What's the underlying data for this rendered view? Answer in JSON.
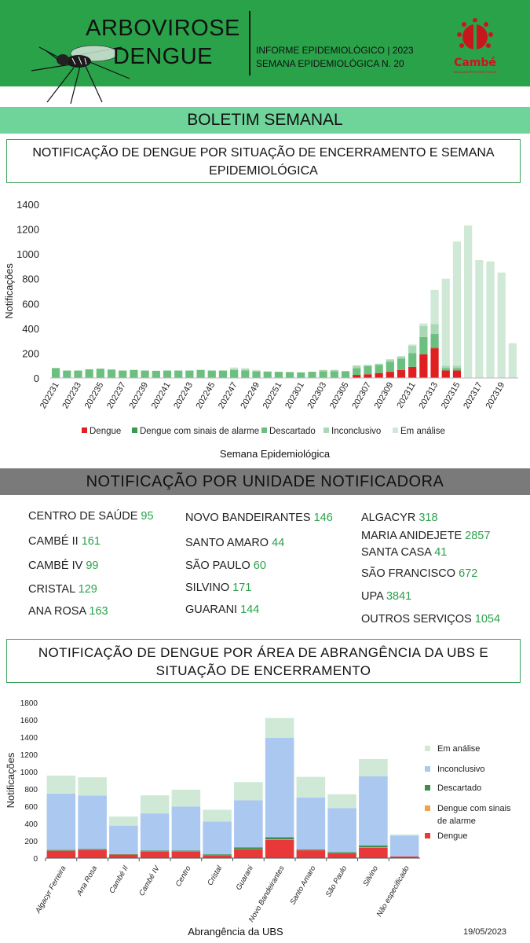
{
  "header": {
    "title_line1": "ARBOVIROSE",
    "title_line2": "DENGUE",
    "informe_line1": "INFORME EPIDEMIOLÓGICO | 2023",
    "informe_line2": "SEMANA EPIDEMIOLÓGICA  N. 20",
    "logo_name": "Cambé",
    "logo_sub": "UM MUNICÍPIO PARA TODOS"
  },
  "banner": {
    "title": "BOLETIM SEMANAL"
  },
  "section1": {
    "title": "NOTIFICAÇÃO DE DENGUE POR SITUAÇÃO DE ENCERRAMENTO E SEMANA EPIDEMIOLÓGICA"
  },
  "section2": {
    "title": "NOTIFICAÇÃO POR UNIDADE NOTIFICADORA"
  },
  "section3": {
    "title": "NOTIFICAÇÃO DE DENGUE POR ÁREA DE ABRANGÊNCIA DA UBS E SITUAÇÃO DE ENCERRAMENTO"
  },
  "units": {
    "col1": [
      {
        "name": "CENTRO  DE SAÚDE",
        "value": "95"
      },
      {
        "name": "CAMBÉ II",
        "value": "161"
      },
      {
        "name": "CAMBÉ IV",
        "value": "99"
      },
      {
        "name": "CRISTAL",
        "value": "129"
      },
      {
        "name": "ANA ROSA",
        "value": "163"
      }
    ],
    "col2": [
      {
        "name": "NOVO BANDEIRANTES",
        "value": "146"
      },
      {
        "name": "SANTO AMARO",
        "value": "44"
      },
      {
        "name": "SÃO PAULO",
        "value": "60"
      },
      {
        "name": "SILVINO",
        "value": "171"
      },
      {
        "name": "GUARANI",
        "value": "144"
      }
    ],
    "col3": [
      {
        "name": "ALGACYR",
        "value": "318"
      },
      {
        "name": "MARIA ANIDEJETE",
        "value": "2857"
      },
      {
        "name": "SANTA CASA",
        "value": "41"
      },
      {
        "name": "SÃO FRANCISCO",
        "value": "672"
      },
      {
        "name": "UPA",
        "value": "3841"
      },
      {
        "name": "OUTROS SERVIÇOS",
        "value": "1054"
      }
    ]
  },
  "footer": {
    "date": "19/05/2023"
  },
  "colors": {
    "dengue": "#e02020",
    "sinais_chart1": "#3a9a4e",
    "descartado": "#6cc07f",
    "inconclusivo": "#a9d8b4",
    "em_analise": "#cfe9d6",
    "sinais_chart2": "#f2a24a",
    "descartado2": "#3e8e4a",
    "inconclusivo2": "#aac8f0",
    "em_analise2": "#cfe9d6",
    "dengue2": "#e8383a"
  },
  "chart_data": [
    {
      "type": "bar",
      "stacked": true,
      "ylabel": "Notificações",
      "xlabel": "Semana Epidemiológica",
      "ylim": [
        0,
        1400
      ],
      "yticks": [
        0,
        200,
        400,
        600,
        800,
        1000,
        1200,
        1400
      ],
      "grid": false,
      "legend_position": "bottom",
      "categories": [
        "202231",
        "202232",
        "202233",
        "202234",
        "202235",
        "202236",
        "202237",
        "202238",
        "202239",
        "202240",
        "202241",
        "202242",
        "202243",
        "202244",
        "202245",
        "202246",
        "202247",
        "202248",
        "202249",
        "202250",
        "202251",
        "202252",
        "202301",
        "202302",
        "202303",
        "202304",
        "202305",
        "202306",
        "202307",
        "202308",
        "202309",
        "202310",
        "202311",
        "202312",
        "202313",
        "202314",
        "202315",
        "202316",
        "202317",
        "202318",
        "202319",
        "202320"
      ],
      "xtick_labels": [
        "202231",
        "",
        "202233",
        "",
        "202235",
        "",
        "202237",
        "",
        "202239",
        "",
        "202241",
        "",
        "202243",
        "",
        "202245",
        "",
        "202247",
        "",
        "202249",
        "",
        "202251",
        "",
        "202301",
        "",
        "202303",
        "",
        "202305",
        "",
        "202307",
        "",
        "202309",
        "",
        "202311",
        "",
        "202313",
        "",
        "202315",
        "",
        "202317",
        "",
        "202319",
        ""
      ],
      "series": [
        {
          "name": "Dengue",
          "values": [
            0,
            0,
            0,
            0,
            0,
            0,
            0,
            0,
            0,
            0,
            0,
            0,
            0,
            0,
            0,
            0,
            0,
            0,
            0,
            0,
            0,
            0,
            0,
            0,
            0,
            0,
            0,
            25,
            30,
            40,
            50,
            65,
            90,
            190,
            240,
            60,
            60,
            0,
            0,
            0,
            0,
            0
          ]
        },
        {
          "name": "Dengue com sinais de alarme",
          "values": [
            0,
            0,
            0,
            0,
            0,
            0,
            0,
            0,
            0,
            0,
            0,
            0,
            0,
            0,
            0,
            0,
            0,
            0,
            0,
            0,
            0,
            0,
            0,
            0,
            0,
            0,
            0,
            0,
            0,
            0,
            0,
            0,
            0,
            0,
            5,
            0,
            0,
            0,
            0,
            0,
            0,
            0
          ]
        },
        {
          "name": "Descartado",
          "values": [
            80,
            60,
            60,
            70,
            75,
            68,
            60,
            65,
            60,
            58,
            60,
            60,
            60,
            65,
            60,
            60,
            65,
            60,
            55,
            52,
            50,
            48,
            45,
            50,
            55,
            55,
            55,
            55,
            65,
            65,
            80,
            90,
            110,
            140,
            110,
            20,
            20,
            0,
            0,
            0,
            0,
            0
          ]
        },
        {
          "name": "Inconclusivo",
          "values": [
            0,
            0,
            0,
            0,
            0,
            0,
            0,
            0,
            0,
            0,
            0,
            0,
            0,
            0,
            0,
            0,
            10,
            10,
            0,
            0,
            0,
            0,
            0,
            0,
            10,
            10,
            0,
            20,
            10,
            10,
            20,
            20,
            60,
            90,
            80,
            20,
            20,
            0,
            5,
            0,
            0,
            0
          ]
        },
        {
          "name": "Em análise",
          "values": [
            0,
            0,
            0,
            0,
            0,
            0,
            0,
            0,
            0,
            0,
            0,
            0,
            0,
            0,
            0,
            0,
            10,
            10,
            10,
            0,
            0,
            0,
            0,
            0,
            0,
            0,
            0,
            0,
            0,
            0,
            0,
            0,
            10,
            20,
            275,
            700,
            1000,
            1230,
            945,
            940,
            850,
            280
          ]
        }
      ]
    },
    {
      "type": "bar",
      "stacked": true,
      "ylabel": "Notificações",
      "xlabel": "Abrangência da UBS",
      "ylim": [
        0,
        1800
      ],
      "yticks": [
        0,
        200,
        400,
        600,
        800,
        1000,
        1200,
        1400,
        1600,
        1800
      ],
      "grid": false,
      "legend_position": "right",
      "categories": [
        "Algacyr Ferreira",
        "Ana Rosa",
        "Cambé II",
        "Cambé IV",
        "Centro",
        "Cristal",
        "Guarani",
        "Novo Bandeirantes",
        "Santo Amaro",
        "São Paulo",
        "Silvino",
        "Não especificado"
      ],
      "series": [
        {
          "name": "Dengue",
          "values": [
            85,
            95,
            40,
            75,
            75,
            35,
            100,
            210,
            90,
            55,
            120,
            20
          ]
        },
        {
          "name": "Dengue com sinais de alarme",
          "values": [
            2,
            2,
            1,
            2,
            2,
            1,
            3,
            6,
            2,
            2,
            4,
            0
          ]
        },
        {
          "name": "Descartado",
          "values": [
            8,
            8,
            5,
            10,
            10,
            8,
            22,
            25,
            8,
            12,
            22,
            0
          ]
        },
        {
          "name": "Inconclusivo",
          "values": [
            650,
            620,
            330,
            430,
            510,
            380,
            545,
            1150,
            600,
            510,
            800,
            240
          ]
        },
        {
          "name": "Em análise",
          "values": [
            210,
            210,
            105,
            210,
            195,
            135,
            210,
            230,
            240,
            160,
            200,
            15
          ]
        }
      ],
      "legend_labels": [
        "Em análise",
        "Inconclusivo",
        "Descartado",
        "Dengue com sinais",
        "de alarme",
        "Dengue"
      ]
    }
  ]
}
